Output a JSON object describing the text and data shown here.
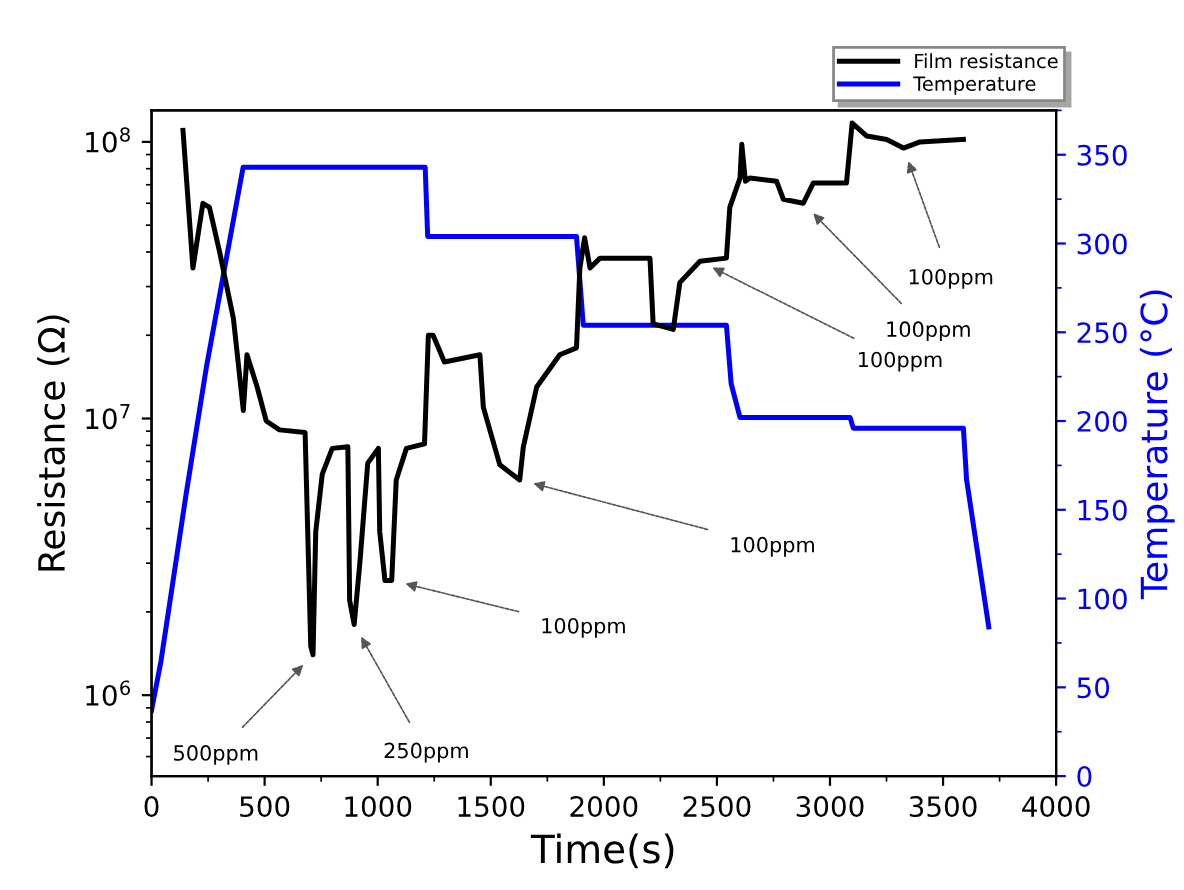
{
  "chart_data": {
    "type": "line",
    "xlabel": "Time(s)",
    "ylabel": "Resistance (Ω)",
    "y2label": "Temperature (°C)",
    "xlim": [
      0,
      4000
    ],
    "xticks": [
      0,
      500,
      1000,
      1500,
      2000,
      2500,
      3000,
      3500,
      4000
    ],
    "ylim": [
      510000,
      130000000
    ],
    "yticks": [
      {
        "value": 1000000,
        "label": "10$^{6}$"
      },
      {
        "value": 10000000,
        "label": "10$^{7}$"
      },
      {
        "value": 100000000,
        "label": "10$^{8}$"
      }
    ],
    "y2lim": [
      0,
      375
    ],
    "y2ticks": [
      0,
      50,
      100,
      150,
      200,
      250,
      300,
      350
    ],
    "log": "y",
    "legend": "top right",
    "grid": false,
    "series": [
      {
        "name": "Film resistance",
        "color": "#000000",
        "x": [
          139,
          183,
          227,
          256,
          301,
          362,
          406,
          422,
          467,
          507,
          566,
          679,
          704,
          714,
          726,
          755,
          799,
          868,
          876,
          896,
          921,
          956,
          1003,
          1009,
          1032,
          1062,
          1082,
          1127,
          1207,
          1224,
          1245,
          1295,
          1452,
          1467,
          1540,
          1628,
          1644,
          1703,
          1805,
          1879,
          1894,
          1915,
          1939,
          1983,
          2204,
          2218,
          2307,
          2336,
          2425,
          2542,
          2557,
          2602,
          2610,
          2626,
          2646,
          2764,
          2794,
          2882,
          2926,
          3073,
          3098,
          3163,
          3251,
          3325,
          3398,
          3590
        ],
        "values": [
          110000000.0,
          35000000.0,
          60000000.0,
          58000000.0,
          40000000.0,
          23000000.0,
          10700000.0,
          17000000.0,
          13000000.0,
          9800000.0,
          9100000.0,
          8900000.0,
          1500000.0,
          1400000.0,
          3900000.0,
          6300000.0,
          7800000.0,
          7900000.0,
          2200000.0,
          1800000.0,
          3000000.0,
          6900000.0,
          7800000.0,
          3900000.0,
          2600000.0,
          2600000.0,
          6000000.0,
          7800000.0,
          8100000.0,
          20000000.0,
          20000000.0,
          16000000.0,
          17000000.0,
          11000000.0,
          6800000.0,
          6000000.0,
          7900000.0,
          13000000.0,
          17000000.0,
          18000000.0,
          35000000.0,
          45000000.0,
          35000000.0,
          38000000.0,
          38000000.0,
          22000000.0,
          21000000.0,
          31000000.0,
          37000000.0,
          38000000.0,
          58000000.0,
          74000000.0,
          98000000.0,
          72000000.0,
          74000000.0,
          72000000.0,
          62000000.0,
          60000000.0,
          71000000.0,
          71000000.0,
          117000000.0,
          105000000.0,
          102000000.0,
          95000000.0,
          100000000.0,
          102000000.0
        ]
      },
      {
        "name": "Temperature",
        "color": "#0000ff",
        "axis": "y2",
        "x": [
          0,
          42,
          153,
          242,
          405,
          1210,
          1221,
          1879,
          1909,
          2542,
          2563,
          2602,
          3089,
          3103,
          3590,
          3604,
          3702
        ],
        "values": [
          37,
          65,
          159,
          230,
          343,
          343,
          304,
          304,
          254,
          254,
          221,
          202,
          202,
          196,
          196,
          167,
          84
        ]
      }
    ],
    "annotations": [
      {
        "text": "500ppm",
        "x": 714,
        "y": 1400000.0
      },
      {
        "text": "250ppm",
        "x": 896,
        "y": 1800000.0
      },
      {
        "text": "100ppm",
        "x": 1062,
        "y": 2600000.0
      },
      {
        "text": "100ppm",
        "x": 1628,
        "y": 6000000.0
      },
      {
        "text": "100ppm",
        "x": 2425,
        "y": 37000000.0
      },
      {
        "text": "100ppm",
        "x": 2882,
        "y": 60000000.0
      },
      {
        "text": "100ppm",
        "x": 3325,
        "y": 95000000.0
      }
    ]
  }
}
